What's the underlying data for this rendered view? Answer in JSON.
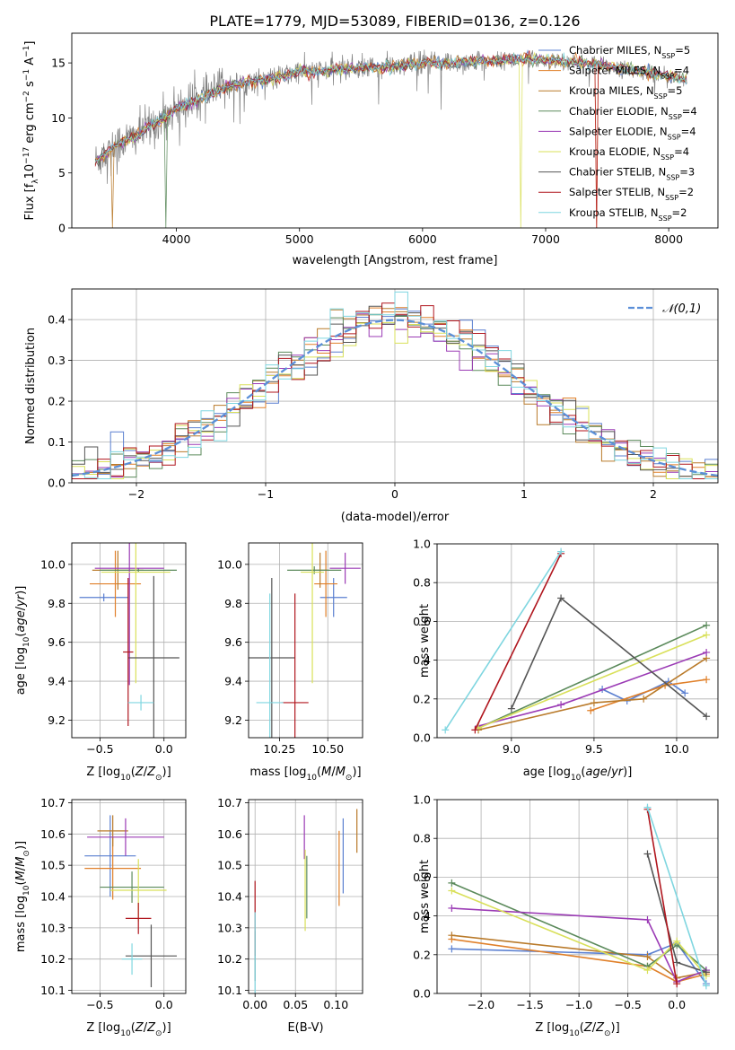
{
  "title": "PLATE=1779, MJD=53089, FIBERID=0136, z=0.126",
  "colors": {
    "Chabrier MILES": "#5a7fd0",
    "Salpeter MILES": "#e0802a",
    "Kroupa MILES": "#b97a2a",
    "Chabrier ELODIE": "#5b8a5b",
    "Salpeter ELODIE": "#9b3bb5",
    "Kroupa ELODIE": "#d9e05a",
    "Chabrier STELIB": "#555555",
    "Salpeter STELIB": "#b0161e",
    "Kroupa STELIB": "#7fd6e0",
    "grid": "#b0b0b0",
    "normal": "#5b8fd8"
  },
  "chart_data": [
    {
      "type": "line",
      "id": "spectrum",
      "xlabel": "wavelength [Angstrom, rest frame]",
      "ylabel": "Flux [f_λ10^-17 erg cm^-2 s^-1 A^-1]",
      "xlim": [
        3150,
        8400
      ],
      "ylim": [
        0,
        17.7
      ],
      "xticks": [
        4000,
        5000,
        6000,
        7000,
        8000
      ],
      "yticks": [
        0,
        5,
        10,
        15
      ],
      "grid": false,
      "legend_position": "right",
      "legend": [
        {
          "base": "Chabrier MILES, N",
          "sub": "SSP",
          "tail": "=5",
          "color": "#5a7fd0"
        },
        {
          "base": "Salpeter MILES, N",
          "sub": "SSP",
          "tail": "=4",
          "color": "#e0802a"
        },
        {
          "base": "Kroupa MILES, N",
          "sub": "SSP",
          "tail": "=5",
          "color": "#b97a2a"
        },
        {
          "base": "Chabrier ELODIE, N",
          "sub": "SSP",
          "tail": "=4",
          "color": "#5b8a5b"
        },
        {
          "base": "Salpeter ELODIE, N",
          "sub": "SSP",
          "tail": "=4",
          "color": "#9b3bb5"
        },
        {
          "base": "Kroupa ELODIE, N",
          "sub": "SSP",
          "tail": "=4",
          "color": "#d9e05a"
        },
        {
          "base": "Chabrier STELIB, N",
          "sub": "SSP",
          "tail": "=3",
          "color": "#555555"
        },
        {
          "base": "Salpeter STELIB, N",
          "sub": "SSP",
          "tail": "=2",
          "color": "#b0161e"
        },
        {
          "base": "Kroupa STELIB, N",
          "sub": "SSP",
          "tail": "=2",
          "color": "#7fd6e0"
        }
      ],
      "approx_continuum": {
        "x": [
          3340,
          3450,
          3550,
          3650,
          3750,
          3900,
          4000,
          4100,
          4250,
          4400,
          4600,
          4800,
          5000,
          5200,
          5400,
          5600,
          5800,
          6000,
          6200,
          6400,
          6600,
          6800,
          7000,
          7200,
          7400,
          7600,
          7800,
          8000,
          8150
        ],
        "y": [
          6.0,
          7.0,
          7.8,
          8.2,
          9.0,
          10.0,
          11.0,
          11.3,
          12.0,
          12.8,
          13.3,
          13.6,
          14.2,
          14.3,
          14.5,
          14.6,
          14.7,
          15.0,
          15.0,
          15.1,
          15.2,
          15.3,
          15.3,
          15.1,
          14.9,
          14.5,
          14.2,
          13.8,
          13.4
        ]
      }
    },
    {
      "type": "histogram",
      "id": "residuals",
      "xlabel": "(data-model)/error",
      "ylabel": "Normed distribution",
      "xlim": [
        -2.5,
        2.5
      ],
      "ylim": [
        0,
        0.475
      ],
      "xticks": [
        -2,
        -1,
        0,
        1,
        2
      ],
      "yticks": [
        0.0,
        0.1,
        0.2,
        0.3,
        0.4
      ],
      "grid": true,
      "legend_position": "top-right",
      "normal_label": "𝒩(0,1)",
      "bin_width": 0.1
    },
    {
      "type": "errorbar",
      "id": "z-age",
      "xlabel": "Z [log10(Z/Z⊙)]",
      "ylabel": "age  [log10(age/yr)]",
      "xlim": [
        -0.72,
        0.17
      ],
      "ylim": [
        9.11,
        10.11
      ],
      "xticks": [
        -0.5,
        0.0
      ],
      "yticks": [
        9.2,
        9.4,
        9.6,
        9.8,
        10.0
      ],
      "grid": true
    },
    {
      "type": "errorbar",
      "id": "mass-age",
      "xlabel": "mass [log10(M/M⊙)]",
      "ylabel": "",
      "xlim": [
        10.09,
        10.68
      ],
      "ylim": [
        9.11,
        10.11
      ],
      "xticks": [
        10.25,
        10.5
      ],
      "yticks": [
        9.2,
        9.4,
        9.6,
        9.8,
        10.0
      ],
      "grid": true
    },
    {
      "type": "line",
      "id": "age-weight",
      "xlabel": "age  [log10(age/yr)]",
      "ylabel": "mass weight",
      "xlim": [
        8.55,
        10.25
      ],
      "ylim": [
        0,
        1.0
      ],
      "xticks": [
        9.0,
        9.5,
        10.0
      ],
      "yticks": [
        0.0,
        0.2,
        0.4,
        0.6,
        0.8,
        1.0
      ],
      "grid": true
    },
    {
      "type": "errorbar",
      "id": "z-mass",
      "xlabel": "Z [log10(Z/Z⊙)]",
      "ylabel": "mass [log10(M/M⊙)]",
      "xlim": [
        -0.72,
        0.17
      ],
      "ylim": [
        10.09,
        10.71
      ],
      "xticks": [
        -0.5,
        0.0
      ],
      "yticks": [
        10.1,
        10.2,
        10.3,
        10.4,
        10.5,
        10.6,
        10.7
      ],
      "grid": true
    },
    {
      "type": "errorbar",
      "id": "ebv-mass",
      "xlabel": "E(B-V)",
      "ylabel": "",
      "xlim": [
        -0.008,
        0.133
      ],
      "ylim": [
        10.09,
        10.71
      ],
      "xticks": [
        0.0,
        0.05,
        0.1
      ],
      "yticks": [
        10.1,
        10.2,
        10.3,
        10.4,
        10.5,
        10.6,
        10.7
      ],
      "grid": true
    },
    {
      "type": "line",
      "id": "z-weight",
      "xlabel": "Z [log10(Z/Z⊙)]",
      "ylabel": "mass weight",
      "xlim": [
        -2.45,
        0.42
      ],
      "ylim": [
        0,
        1.0
      ],
      "xticks": [
        -2.0,
        -1.5,
        -1.0,
        -0.5,
        0.0
      ],
      "yticks": [
        0.0,
        0.2,
        0.4,
        0.6,
        0.8,
        1.0
      ],
      "grid": true
    }
  ]
}
